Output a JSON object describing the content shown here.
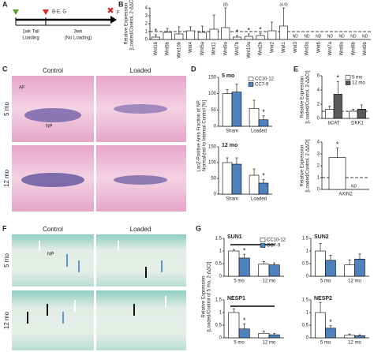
{
  "panel_labels": [
    "A",
    "B",
    "C",
    "D",
    "E",
    "F",
    "G"
  ],
  "timeline": {
    "top_labels": [
      "B-E, G",
      "F"
    ],
    "bottom_left": [
      "1wk Tail",
      "Loading"
    ],
    "bottom_right": [
      "3wk",
      "(No Loading)"
    ]
  },
  "histology_c": {
    "columns": [
      "Control",
      "Loaded"
    ],
    "rows": [
      "5 mo",
      "12 mo"
    ],
    "labels": [
      "AF",
      "NP"
    ]
  },
  "histology_f": {
    "columns": [
      "Control",
      "Loaded"
    ],
    "rows": [
      "5 mo",
      "12 mo"
    ],
    "labels": [
      "NP"
    ]
  },
  "chart_data": [
    {
      "type": "bar",
      "ylabel": [
        "Relative Expression",
        "[Loaded/Control, 2-ΔΔCt]"
      ],
      "categories": [
        "Wnt16",
        "Wnt5b",
        "Wnt10b",
        "Wnt4",
        "Wnt5a",
        "Wnt11",
        "Wnt9a",
        "Wnt7b",
        "Wnt10a",
        "Wnt2b",
        "Wnt2",
        "Wnt1",
        "Wnt3",
        "Wnt3a",
        "Wnt6",
        "Wnt7a",
        "Wnt8a",
        "Wnt8b",
        "Wnt9b"
      ],
      "values": [
        0.3,
        0.9,
        0.7,
        1.1,
        0.9,
        1.3,
        1.5,
        0.3,
        0.4,
        0.5,
        1.1,
        1.7,
        null,
        null,
        null,
        null,
        null,
        null,
        null
      ],
      "errors": [
        0.3,
        0.5,
        0.9,
        0.5,
        0.8,
        1.8,
        2.5,
        0.2,
        0.3,
        0.3,
        1.1,
        2.3,
        null,
        null,
        null,
        null,
        null,
        null,
        null
      ],
      "notes": [
        "*",
        null,
        null,
        null,
        null,
        null,
        "(8)",
        "*",
        "*",
        "*",
        null,
        "(4.9)",
        "ND",
        "ND",
        "ND",
        "ND",
        "ND",
        "ND",
        "ND"
      ],
      "color": "#ffffff",
      "ylim": [
        0,
        4
      ],
      "yticks": [
        0,
        1,
        2,
        3,
        4
      ],
      "reference_line": 1
    },
    {
      "type": "bar",
      "title": "5 mo",
      "ylabel": [
        "LacZ-Positive Area Fraction of NP,",
        "Normalized to Internal Control [%]"
      ],
      "categories": [
        "Sham",
        "Loaded"
      ],
      "legend": "upper right",
      "series": [
        {
          "name": "CC10-12",
          "color": "#ffffff",
          "values": [
            100,
            55
          ],
          "errors": [
            12,
            25
          ],
          "notes": [
            null,
            null
          ]
        },
        {
          "name": "CC7-9",
          "color": "#4f81bd",
          "values": [
            105,
            20
          ],
          "errors": [
            25,
            12
          ],
          "notes": [
            null,
            "*"
          ]
        }
      ],
      "ylim": [
        0,
        150
      ],
      "yticks": [
        0,
        50,
        100,
        150
      ]
    },
    {
      "type": "bar",
      "title": "12 mo",
      "categories": [
        "Sham",
        "Loaded"
      ],
      "series": [
        {
          "color": "#ffffff",
          "values": [
            100,
            60
          ],
          "errors": [
            15,
            20
          ],
          "notes": [
            null,
            null
          ]
        },
        {
          "color": "#4f81bd",
          "values": [
            95,
            35
          ],
          "errors": [
            20,
            12
          ],
          "notes": [
            null,
            "*"
          ]
        }
      ],
      "ylim": [
        0,
        150
      ],
      "yticks": [
        0,
        50,
        100,
        150
      ]
    },
    {
      "type": "bar",
      "ylabel": [
        "Relative Expression",
        "[Loaded/Control, 2-ΔΔCt]"
      ],
      "categories": [
        "bCAT",
        "DKK1"
      ],
      "legend": "upper right",
      "reference_line": 1,
      "series": [
        {
          "name": "5 mo",
          "color": "#ffffff",
          "values": [
            1.3,
            1.0
          ],
          "errors": [
            0.4,
            0.3
          ],
          "notes": [
            null,
            null
          ]
        },
        {
          "name": "12 mo",
          "color": "#595959",
          "values": [
            3.4,
            1.3
          ],
          "errors": [
            1.8,
            0.6
          ],
          "notes": [
            "*",
            null
          ]
        }
      ],
      "ylim": [
        0,
        6
      ],
      "yticks": [
        0,
        2,
        4,
        6
      ]
    },
    {
      "type": "bar",
      "ylabel": [
        "Relative Expression",
        "[Loaded/Control, 2-ΔΔCt]"
      ],
      "categories": [
        "AXIN2"
      ],
      "reference_line": 1,
      "series": [
        {
          "color": "#ffffff",
          "values": [
            2.7
          ],
          "errors": [
            0.8
          ],
          "notes": [
            "*"
          ]
        },
        {
          "color": "#595959",
          "values": [
            null
          ],
          "errors": [
            null
          ],
          "notes": [
            "ND"
          ]
        }
      ],
      "ylim": [
        0,
        4
      ],
      "yticks": [
        0,
        1,
        2,
        3,
        4
      ]
    },
    {
      "type": "bar",
      "title": "SUN1",
      "ylabel": [
        "Relative Expression",
        "[Loaded/Control of 5 mo, 2-ΔΔCt]"
      ],
      "categories": [
        "5 mo",
        "12 mo"
      ],
      "legend": "upper right",
      "series": [
        {
          "name": "CC10-12",
          "color": "#ffffff",
          "values": [
            1.0,
            0.48
          ],
          "errors": [
            0.06,
            0.1
          ],
          "notes": [
            null,
            null
          ]
        },
        {
          "name": "CC7-9",
          "color": "#4f81bd",
          "values": [
            0.72,
            0.45
          ],
          "errors": [
            0.15,
            0.08
          ],
          "notes": [
            "*",
            null
          ]
        }
      ],
      "ylim": [
        0,
        1.5
      ],
      "yticks": [
        0,
        0.5,
        1,
        1.5
      ]
    },
    {
      "type": "bar",
      "title": "SUN2",
      "categories": [
        "5 mo",
        "12 mo"
      ],
      "series": [
        {
          "color": "#ffffff",
          "values": [
            1.0,
            0.45
          ],
          "errors": [
            0.3,
            0.2
          ],
          "notes": [
            null,
            null
          ]
        },
        {
          "color": "#4f81bd",
          "values": [
            0.63,
            0.68
          ],
          "errors": [
            0.2,
            0.2
          ],
          "notes": [
            null,
            null
          ]
        }
      ],
      "ylim": [
        0,
        1.5
      ],
      "yticks": [
        0,
        0.5,
        1,
        1.5
      ]
    },
    {
      "type": "bar",
      "title": "NESP1",
      "categories": [
        "5 mo",
        "12 mo"
      ],
      "series": [
        {
          "color": "#ffffff",
          "values": [
            1.0,
            0.18
          ],
          "errors": [
            0.15,
            0.08
          ],
          "notes": [
            null,
            null
          ]
        },
        {
          "color": "#4f81bd",
          "values": [
            0.35,
            0.12
          ],
          "errors": [
            0.2,
            0.05
          ],
          "notes": [
            "*",
            null
          ]
        }
      ],
      "ylim": [
        0,
        1.5
      ],
      "yticks": [
        0,
        0.5,
        1,
        1.5
      ]
    },
    {
      "type": "bar",
      "title": "NESP2",
      "categories": [
        "5 mo",
        "12 mo"
      ],
      "series": [
        {
          "color": "#ffffff",
          "values": [
            1.0,
            0.1
          ],
          "errors": [
            0.4,
            0.05
          ],
          "notes": [
            null,
            null
          ]
        },
        {
          "color": "#4f81bd",
          "values": [
            0.38,
            0.08
          ],
          "errors": [
            0.1,
            0.04
          ],
          "notes": [
            "*",
            null
          ]
        }
      ],
      "ylim": [
        0,
        1.5
      ],
      "yticks": [
        0,
        0.5,
        1,
        1.5
      ]
    }
  ]
}
